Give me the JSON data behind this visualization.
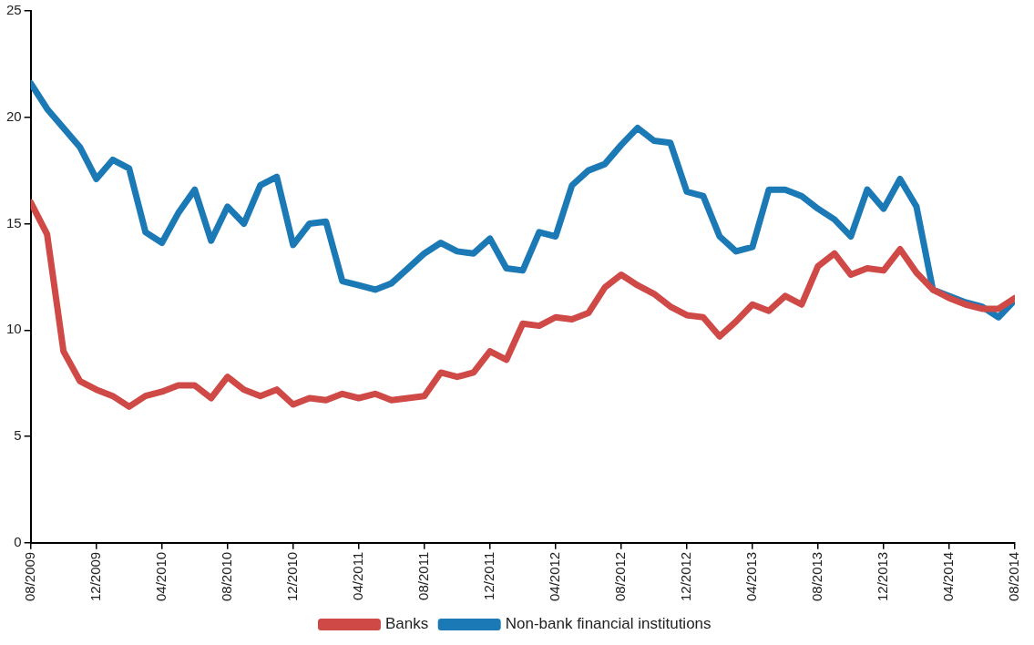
{
  "chart_data": {
    "type": "line",
    "x": [
      "2009-08",
      "2009-09",
      "2009-10",
      "2009-11",
      "2009-12",
      "2010-01",
      "2010-02",
      "2010-03",
      "2010-04",
      "2010-05",
      "2010-06",
      "2010-07",
      "2010-08",
      "2010-09",
      "2010-10",
      "2010-11",
      "2010-12",
      "2011-01",
      "2011-02",
      "2011-03",
      "2011-04",
      "2011-05",
      "2011-06",
      "2011-07",
      "2011-08",
      "2011-09",
      "2011-10",
      "2011-11",
      "2011-12",
      "2012-01",
      "2012-02",
      "2012-03",
      "2012-04",
      "2012-05",
      "2012-06",
      "2012-07",
      "2012-08",
      "2012-09",
      "2012-10",
      "2012-11",
      "2012-12",
      "2013-01",
      "2013-02",
      "2013-03",
      "2013-04",
      "2013-05",
      "2013-06",
      "2013-07",
      "2013-08",
      "2013-09",
      "2013-10",
      "2013-11",
      "2013-12",
      "2014-01",
      "2014-02",
      "2014-03",
      "2014-04",
      "2014-05",
      "2014-06",
      "2014-07",
      "2014-08"
    ],
    "series": [
      {
        "name": "Banks",
        "color": "#cf4a47",
        "values": [
          16.0,
          14.5,
          9.0,
          7.6,
          7.2,
          6.9,
          6.4,
          6.9,
          7.1,
          7.4,
          7.4,
          6.8,
          7.8,
          7.2,
          6.9,
          7.2,
          6.5,
          6.8,
          6.7,
          7.0,
          6.8,
          7.0,
          6.7,
          6.8,
          6.9,
          8.0,
          7.8,
          8.0,
          9.0,
          8.6,
          10.3,
          10.2,
          10.6,
          10.5,
          10.8,
          12.0,
          12.6,
          12.1,
          11.7,
          11.1,
          10.7,
          10.6,
          9.7,
          10.4,
          11.2,
          10.9,
          11.6,
          11.2,
          13.0,
          13.6,
          12.6,
          12.9,
          12.8,
          13.8,
          12.7,
          11.9,
          11.5,
          11.2,
          11.0,
          11.0,
          11.5
        ]
      },
      {
        "name": "Non-bank financial institutions",
        "color": "#1b7ab5",
        "values": [
          21.6,
          20.4,
          19.5,
          18.6,
          17.1,
          18.0,
          17.6,
          14.6,
          14.1,
          15.5,
          16.6,
          14.2,
          15.8,
          15.0,
          16.8,
          17.2,
          14.0,
          15.0,
          15.1,
          12.3,
          12.1,
          11.9,
          12.2,
          12.9,
          13.6,
          14.1,
          13.7,
          13.6,
          14.3,
          12.9,
          12.8,
          14.6,
          14.4,
          16.8,
          17.5,
          17.8,
          18.7,
          19.5,
          18.9,
          18.8,
          16.5,
          16.3,
          14.4,
          13.7,
          13.9,
          16.6,
          16.6,
          16.3,
          15.7,
          15.2,
          14.4,
          16.6,
          15.7,
          17.1,
          15.8,
          11.9,
          11.6,
          11.3,
          11.1,
          10.6,
          11.4
        ]
      }
    ],
    "xlim": [
      "2009-08",
      "2014-08"
    ],
    "xticks": [
      {
        "value": "2009-08",
        "label": "08/2009"
      },
      {
        "value": "2009-12",
        "label": "12/2009"
      },
      {
        "value": "2010-04",
        "label": "04/2010"
      },
      {
        "value": "2010-08",
        "label": "08/2010"
      },
      {
        "value": "2010-12",
        "label": "12/2010"
      },
      {
        "value": "2011-04",
        "label": "04/2011"
      },
      {
        "value": "2011-08",
        "label": "08/2011"
      },
      {
        "value": "2011-12",
        "label": "12/2011"
      },
      {
        "value": "2012-04",
        "label": "04/2012"
      },
      {
        "value": "2012-08",
        "label": "08/2012"
      },
      {
        "value": "2012-12",
        "label": "12/2012"
      },
      {
        "value": "2013-04",
        "label": "04/2013"
      },
      {
        "value": "2013-08",
        "label": "08/2013"
      },
      {
        "value": "2013-12",
        "label": "12/2013"
      },
      {
        "value": "2014-04",
        "label": "04/2014"
      },
      {
        "value": "2014-08",
        "label": "08/2014"
      }
    ],
    "ylim": [
      0,
      25
    ],
    "yticks": [
      0,
      5,
      10,
      15,
      20,
      25
    ],
    "grid": false,
    "legend": "bottom",
    "marker": "none",
    "line_style": "solid"
  }
}
